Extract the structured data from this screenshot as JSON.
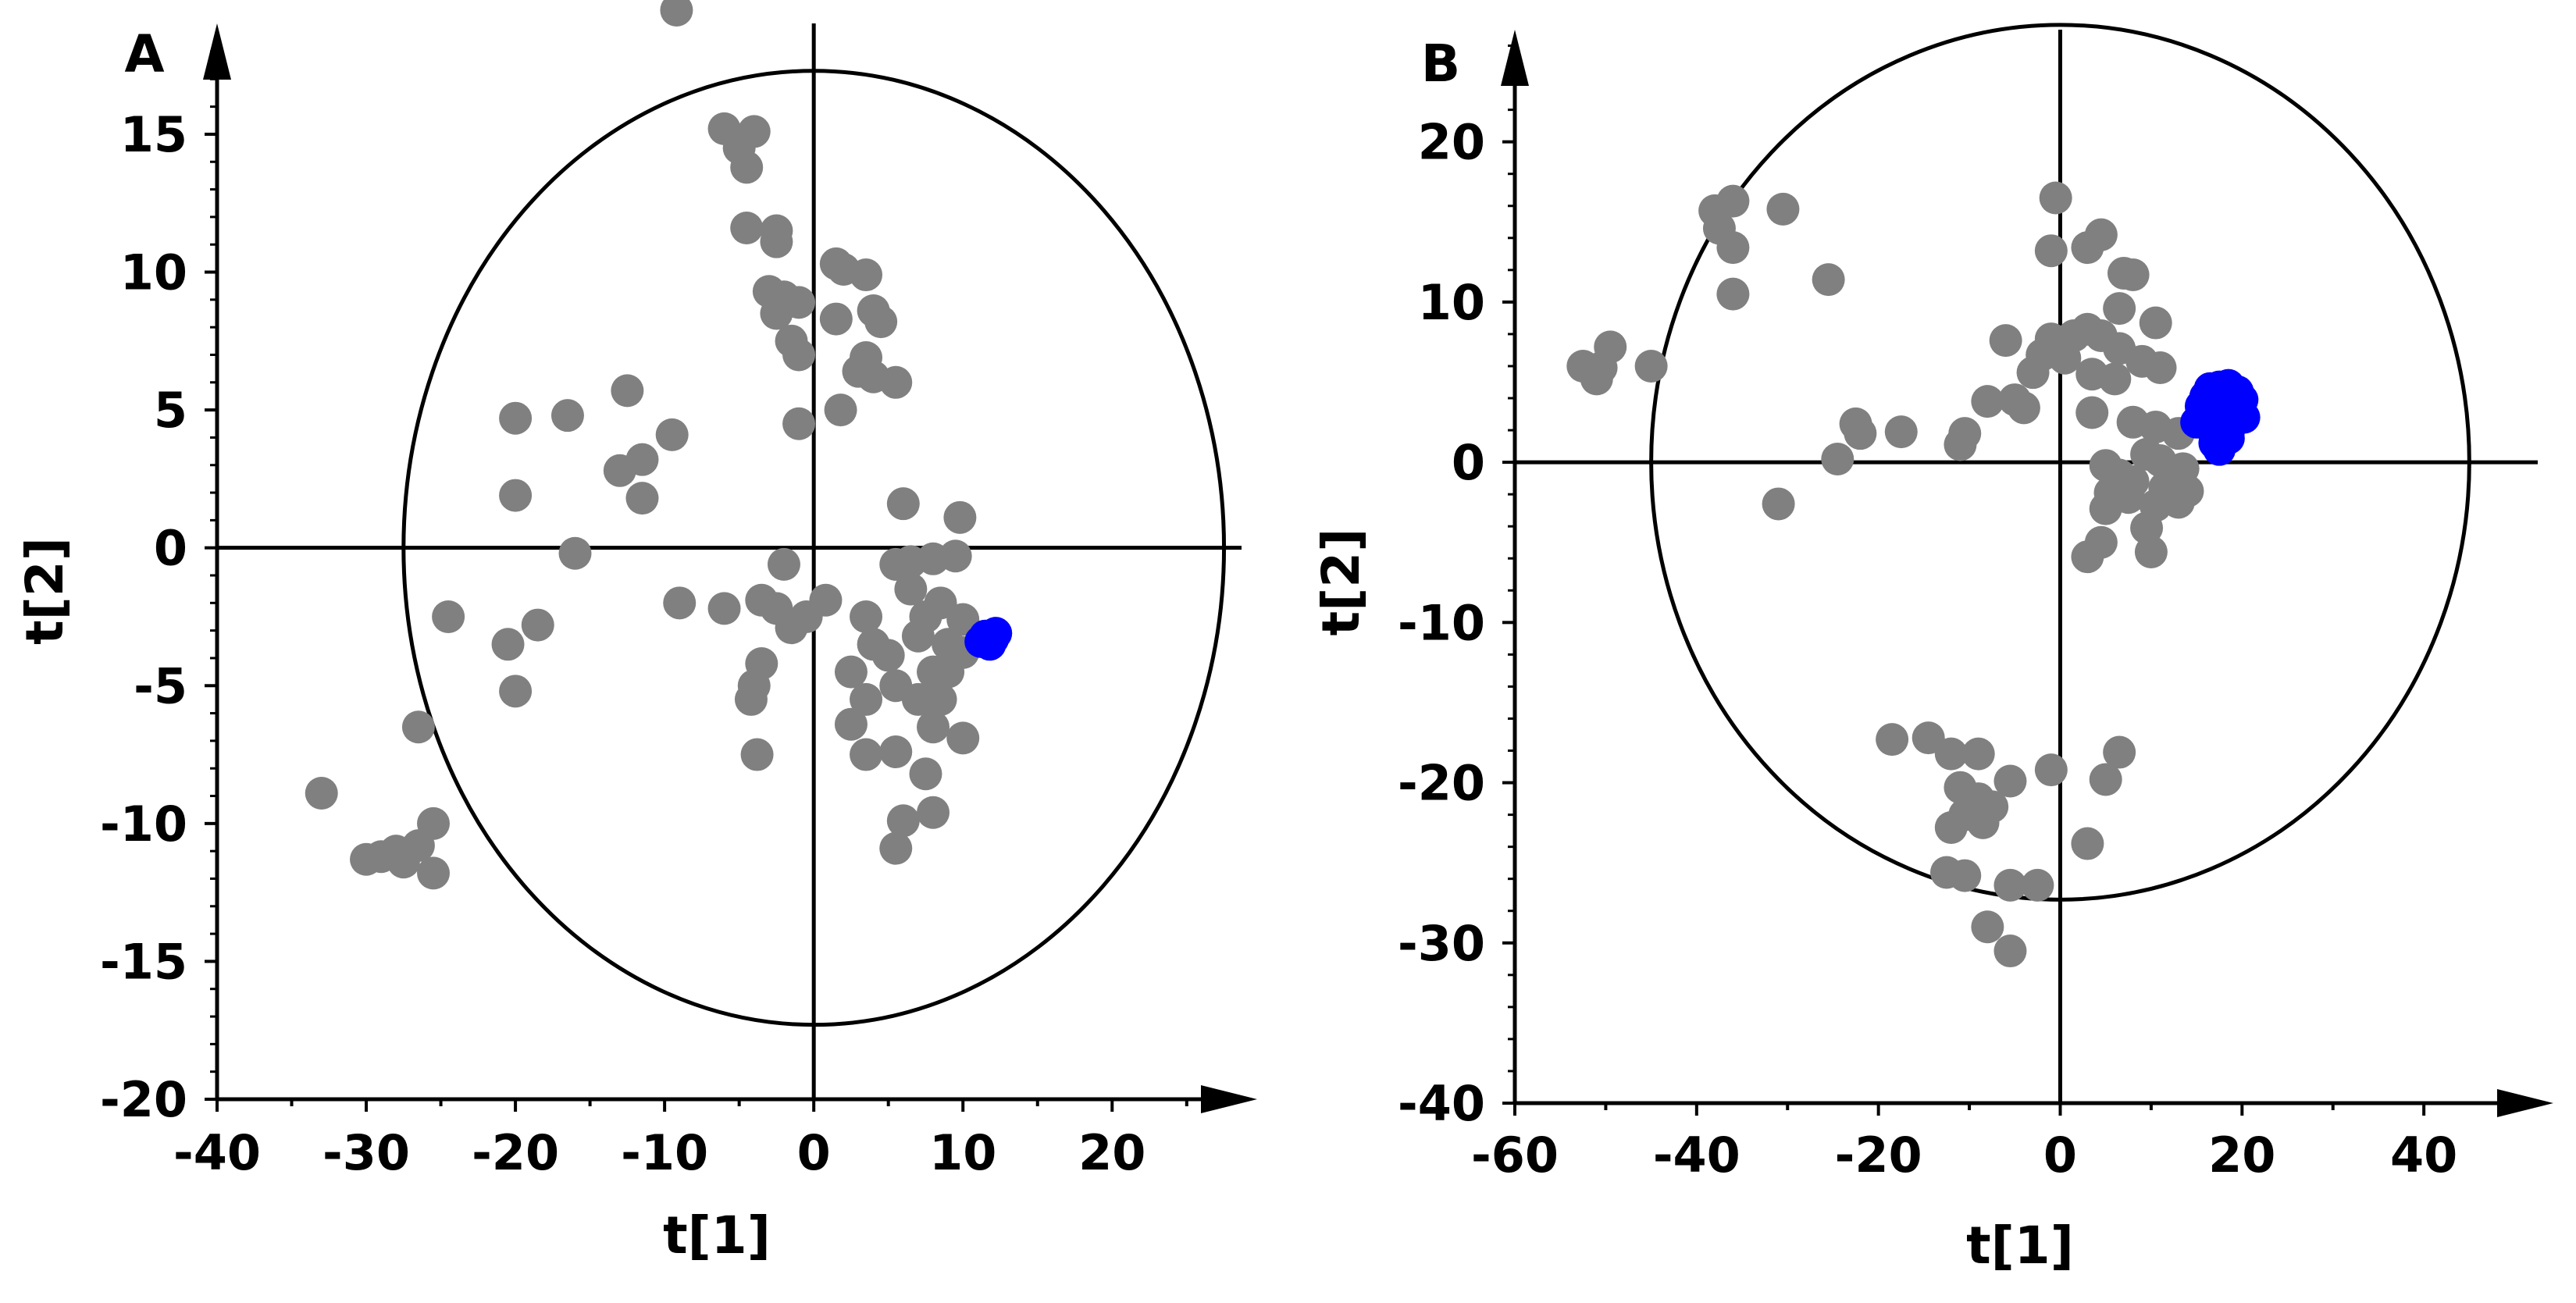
{
  "chart_data": [
    {
      "type": "scatter",
      "panel_label": "A",
      "xlabel": "t[1]",
      "ylabel": "t[2]",
      "xlim": [
        -40,
        27
      ],
      "ylim": [
        -20,
        18
      ],
      "xticks": [
        -40,
        -30,
        -20,
        -10,
        0,
        10,
        20
      ],
      "yticks": [
        -20,
        -15,
        -10,
        -5,
        0,
        5,
        10,
        15
      ],
      "ellipse": {
        "rx": 27.5,
        "ry": 17.3
      },
      "colors": {
        "other": "#808080",
        "highlight": "#0000ff"
      },
      "series": [
        {
          "color": "other",
          "points": [
            [
              -9.2,
              19.5
            ],
            [
              -6,
              15.2
            ],
            [
              -4,
              15.1
            ],
            [
              -5,
              14.5
            ],
            [
              -4.5,
              13.8
            ],
            [
              -4.5,
              11.6
            ],
            [
              -2.5,
              11.5
            ],
            [
              -2.5,
              11.1
            ],
            [
              1.5,
              10.3
            ],
            [
              2,
              10.1
            ],
            [
              3.5,
              9.9
            ],
            [
              -3,
              9.3
            ],
            [
              -2,
              9.1
            ],
            [
              -1,
              8.9
            ],
            [
              -2.5,
              8.5
            ],
            [
              4,
              8.6
            ],
            [
              4.5,
              8.2
            ],
            [
              1.5,
              8.3
            ],
            [
              -1.5,
              7.5
            ],
            [
              -1,
              7
            ],
            [
              3.5,
              6.9
            ],
            [
              4,
              6.2
            ],
            [
              5.5,
              6
            ],
            [
              3,
              6.4
            ],
            [
              1.8,
              5
            ],
            [
              -1,
              4.5
            ],
            [
              -12.5,
              5.7
            ],
            [
              -9.5,
              4.1
            ],
            [
              -20,
              4.7
            ],
            [
              -16.5,
              4.8
            ],
            [
              -13,
              2.8
            ],
            [
              -11.5,
              3.2
            ],
            [
              -11.5,
              1.8
            ],
            [
              -20,
              1.9
            ],
            [
              -16,
              -0.2
            ],
            [
              -2,
              -0.6
            ],
            [
              -9,
              -2
            ],
            [
              -6,
              -2.2
            ],
            [
              -3.5,
              -1.9
            ],
            [
              -2.5,
              -2.2
            ],
            [
              -1.5,
              -2.9
            ],
            [
              -0.5,
              -2.5
            ],
            [
              0.8,
              -1.9
            ],
            [
              6,
              1.6
            ],
            [
              9.8,
              1.1
            ],
            [
              5.5,
              -0.6
            ],
            [
              6.5,
              -0.5
            ],
            [
              8,
              -0.4
            ],
            [
              9.5,
              -0.3
            ],
            [
              6.5,
              -1.5
            ],
            [
              7.5,
              -2.5
            ],
            [
              8.5,
              -2
            ],
            [
              10,
              -2.6
            ],
            [
              3.5,
              -2.5
            ],
            [
              4,
              -3.5
            ],
            [
              7,
              -3.2
            ],
            [
              9,
              -3.5
            ],
            [
              10,
              -3.8
            ],
            [
              2.5,
              -4.5
            ],
            [
              5,
              -3.9
            ],
            [
              8,
              -4.5
            ],
            [
              9,
              -4.5
            ],
            [
              -3.5,
              -4.2
            ],
            [
              -4,
              -5
            ],
            [
              -4.2,
              -5.5
            ],
            [
              3.5,
              -5.5
            ],
            [
              5.5,
              -5
            ],
            [
              7,
              -5.5
            ],
            [
              8.5,
              -5.5
            ],
            [
              2.5,
              -6.4
            ],
            [
              8,
              -6.5
            ],
            [
              10,
              -6.9
            ],
            [
              -3.8,
              -7.5
            ],
            [
              3.5,
              -7.5
            ],
            [
              5.5,
              -7.4
            ],
            [
              7.5,
              -8.2
            ],
            [
              6,
              -9.9
            ],
            [
              8,
              -9.6
            ],
            [
              5.5,
              -10.9
            ],
            [
              -24.5,
              -2.5
            ],
            [
              -18.5,
              -2.8
            ],
            [
              -20.5,
              -3.5
            ],
            [
              -20,
              -5.2
            ],
            [
              -26.5,
              -6.5
            ],
            [
              -33,
              -8.9
            ],
            [
              -25.5,
              -10
            ],
            [
              -26.5,
              -10.8
            ],
            [
              -28,
              -11
            ],
            [
              -29,
              -11.2
            ],
            [
              -30,
              -11.3
            ],
            [
              -27.5,
              -11.4
            ],
            [
              -25.5,
              -11.8
            ]
          ]
        },
        {
          "color": "highlight",
          "points": [
            [
              11.5,
              -3.2
            ],
            [
              12,
              -3.3
            ],
            [
              11.8,
              -3.5
            ],
            [
              11.2,
              -3.4
            ],
            [
              12.2,
              -3.1
            ]
          ]
        }
      ]
    },
    {
      "type": "scatter",
      "panel_label": "B",
      "xlabel": "t[1]",
      "ylabel": "t[2]",
      "xlim": [
        -60,
        46
      ],
      "ylim": [
        -40,
        27
      ],
      "xticks": [
        -60,
        -40,
        -20,
        0,
        20,
        40
      ],
      "yticks": [
        -40,
        -30,
        -20,
        -10,
        0,
        10,
        20
      ],
      "ellipse": {
        "rx": 45,
        "ry": 27.3
      },
      "colors": {
        "other": "#808080",
        "highlight": "#0000ff"
      },
      "series": [
        {
          "color": "other",
          "points": [
            [
              -0.5,
              16.5
            ],
            [
              -38,
              15.7
            ],
            [
              -36,
              16.3
            ],
            [
              -37.5,
              14.6
            ],
            [
              -36,
              13.4
            ],
            [
              -36,
              10.5
            ],
            [
              -30.5,
              15.8
            ],
            [
              -25.5,
              11.4
            ],
            [
              -1,
              13.2
            ],
            [
              3,
              13.4
            ],
            [
              4.5,
              14.2
            ],
            [
              7,
              11.8
            ],
            [
              8,
              11.7
            ],
            [
              6.5,
              9.6
            ],
            [
              10.5,
              8.7
            ],
            [
              -6,
              7.6
            ],
            [
              -1,
              7.7
            ],
            [
              1.5,
              7.9
            ],
            [
              3,
              8.3
            ],
            [
              4.5,
              7.9
            ],
            [
              6.5,
              7.1
            ],
            [
              9,
              6.3
            ],
            [
              11,
              5.9
            ],
            [
              -2,
              6.7
            ],
            [
              0.5,
              6.5
            ],
            [
              -3,
              5.6
            ],
            [
              3.5,
              5.5
            ],
            [
              6,
              5.2
            ],
            [
              -5,
              3.9
            ],
            [
              -8,
              3.8
            ],
            [
              -4,
              3.4
            ],
            [
              3.5,
              3.1
            ],
            [
              8,
              2.5
            ],
            [
              10.5,
              2.2
            ],
            [
              13,
              1.8
            ],
            [
              -10.5,
              1.8
            ],
            [
              -11,
              1.1
            ],
            [
              -17.5,
              1.9
            ],
            [
              -22.5,
              2.4
            ],
            [
              -22,
              1.8
            ],
            [
              -24.5,
              0.2
            ],
            [
              -31,
              -2.6
            ],
            [
              -45,
              6
            ],
            [
              -49.5,
              7.2
            ],
            [
              -50.5,
              5.9
            ],
            [
              -51,
              5.2
            ],
            [
              -52.5,
              6
            ],
            [
              9.5,
              0.5
            ],
            [
              11,
              0.1
            ],
            [
              13.5,
              -0.4
            ],
            [
              5,
              -0.2
            ],
            [
              6.5,
              -0.8
            ],
            [
              8,
              -1.2
            ],
            [
              11.5,
              -1.6
            ],
            [
              14,
              -1.8
            ],
            [
              5.5,
              -1.9
            ],
            [
              7.5,
              -2.2
            ],
            [
              10.5,
              -2.7
            ],
            [
              13,
              -2.5
            ],
            [
              5,
              -2.9
            ],
            [
              9.5,
              -4.1
            ],
            [
              4.5,
              -5
            ],
            [
              3,
              -5.9
            ],
            [
              10,
              -5.6
            ],
            [
              -18.5,
              -17.3
            ],
            [
              -14.5,
              -17.2
            ],
            [
              -12,
              -18.2
            ],
            [
              -9,
              -18.2
            ],
            [
              6.5,
              -18.1
            ],
            [
              -1,
              -19.2
            ],
            [
              5,
              -19.8
            ],
            [
              -5.5,
              -19.9
            ],
            [
              -11,
              -20.3
            ],
            [
              -9,
              -21
            ],
            [
              -7.5,
              -21.5
            ],
            [
              -10.5,
              -22
            ],
            [
              -8.5,
              -22.5
            ],
            [
              -12,
              -22.8
            ],
            [
              3,
              -23.8
            ],
            [
              -12.5,
              -25.6
            ],
            [
              -10.5,
              -25.8
            ],
            [
              -5.5,
              -26.4
            ],
            [
              -2.5,
              -26.4
            ],
            [
              -8,
              -29
            ],
            [
              -5.5,
              -30.5
            ]
          ]
        },
        {
          "color": "highlight",
          "points": [
            [
              16.5,
              4.6
            ],
            [
              17.5,
              4.7
            ],
            [
              18.5,
              4.8
            ],
            [
              19.5,
              4.4
            ],
            [
              20,
              3.9
            ],
            [
              15.5,
              3.5
            ],
            [
              16.5,
              3.2
            ],
            [
              18,
              3.2
            ],
            [
              19.5,
              3.1
            ],
            [
              20.2,
              2.8
            ],
            [
              15,
              2.5
            ],
            [
              16,
              2.4
            ],
            [
              17.5,
              2.2
            ],
            [
              18.5,
              1.9
            ],
            [
              17,
              1.2
            ],
            [
              18.5,
              1.5
            ],
            [
              17.5,
              0.8
            ],
            [
              19,
              2.6
            ],
            [
              16,
              4.1
            ],
            [
              18,
              4.2
            ]
          ]
        }
      ]
    }
  ]
}
